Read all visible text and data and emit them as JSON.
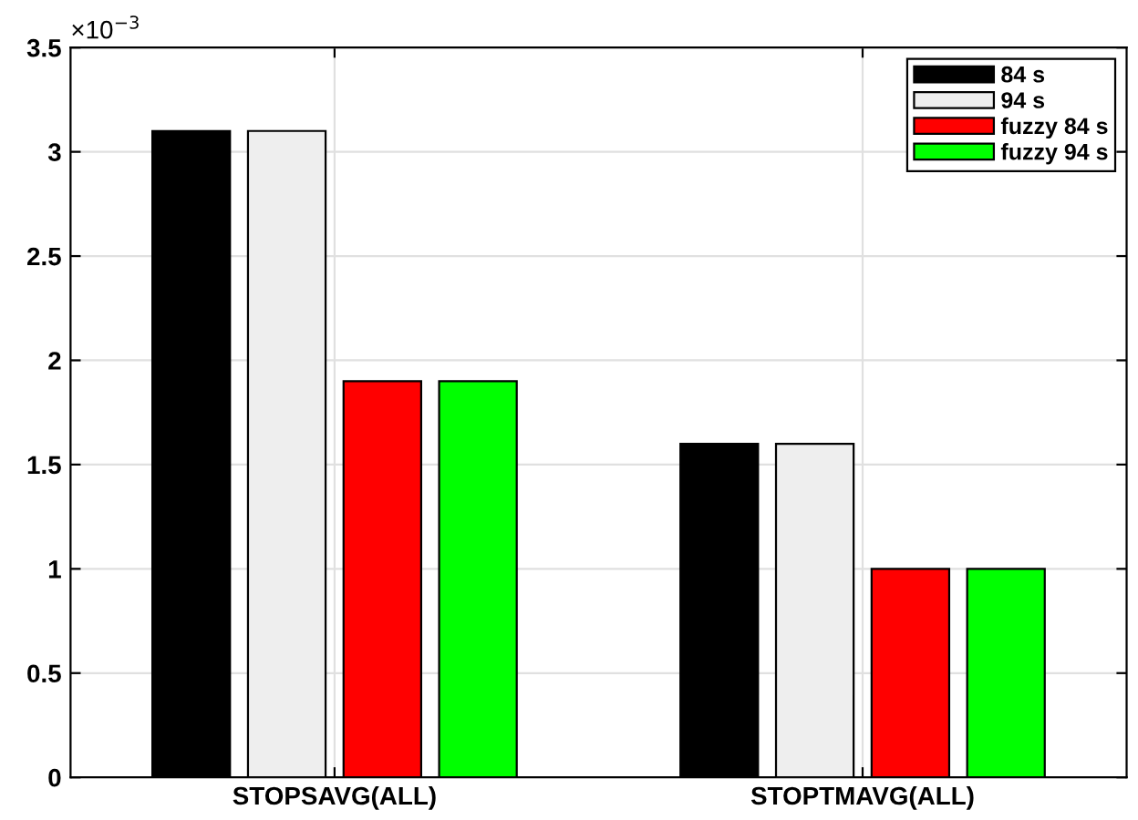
{
  "chart_data": {
    "type": "bar",
    "categories": [
      "STOPSAVG(ALL)",
      "STOPTMAVG(ALL)"
    ],
    "series": [
      {
        "name": "84 s",
        "color": "#000000",
        "values": [
          3.1,
          1.6
        ]
      },
      {
        "name": "94 s",
        "color": "#eeeeee",
        "values": [
          3.1,
          1.6
        ]
      },
      {
        "name": "fuzzy 84 s",
        "color": "#ff0000",
        "values": [
          1.9,
          1.0
        ]
      },
      {
        "name": "fuzzy 94 s",
        "color": "#00ff00",
        "values": [
          1.9,
          1.0
        ]
      }
    ],
    "ylim": [
      0,
      3.5
    ],
    "yticks": [
      0,
      0.5,
      1,
      1.5,
      2,
      2.5,
      3,
      3.5
    ],
    "annotations": [
      "×10$^{−3}$"
    ],
    "grid": true,
    "legend": "top right"
  }
}
